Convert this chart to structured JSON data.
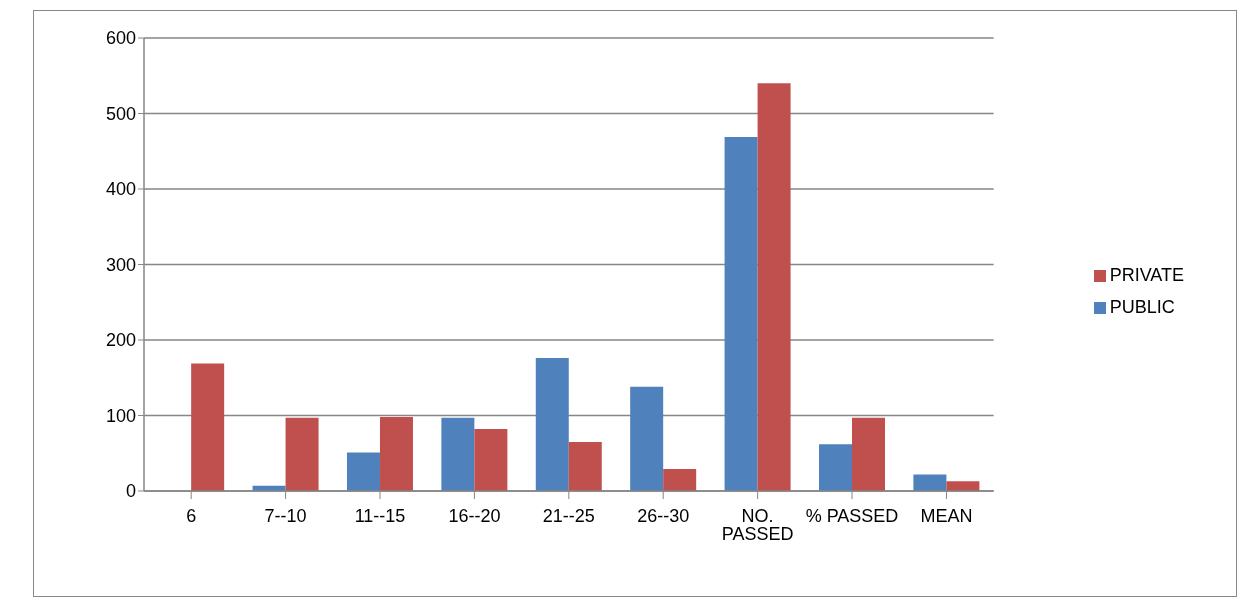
{
  "chart_data": {
    "type": "bar",
    "categories": [
      "6",
      "7--10",
      "11--15",
      "16--20",
      "21--25",
      "26--30",
      "NO. PASSED",
      "% PASSED",
      "MEAN"
    ],
    "series": [
      {
        "name": "PUBLIC",
        "color": "#4f81bd",
        "values": [
          0,
          7,
          51,
          97,
          176,
          138,
          469,
          62,
          22
        ]
      },
      {
        "name": "PRIVATE",
        "color": "#c0504d",
        "values": [
          169,
          97,
          98,
          82,
          65,
          29,
          540,
          97,
          13
        ]
      }
    ],
    "ylim": [
      0,
      600
    ],
    "yticks": [
      0,
      100,
      200,
      300,
      400,
      500,
      600
    ],
    "grid": "y",
    "legend": "right"
  }
}
